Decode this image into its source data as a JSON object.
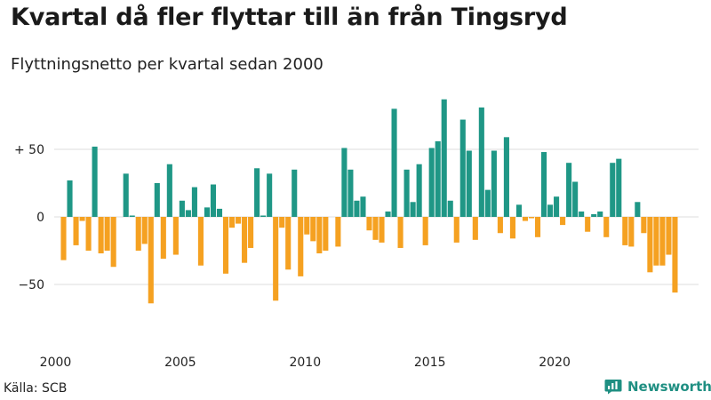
{
  "title": "Kvartal då fler flyttar till än från Tingsryd",
  "subtitle": "Flyttningsnetto per kvartal sedan 2000",
  "source": "Källa: SCB",
  "brand": {
    "name": "Newsworthy",
    "icon": "bar-chart-logo-icon"
  },
  "colors": {
    "positive": "#1f9786",
    "negative": "#f5a121",
    "grid": "#dddddd",
    "brand": "#1f8f82"
  },
  "chart_data": {
    "type": "bar",
    "title": "Kvartal då fler flyttar till än från Tingsryd",
    "subtitle": "Flyttningsnetto per kvartal sedan 2000",
    "xlabel": "",
    "ylabel": "",
    "x_start": "2000-Q1",
    "x_ticks": [
      {
        "label": "2000",
        "index": 0
      },
      {
        "label": "2005",
        "index": 20
      },
      {
        "label": "2010",
        "index": 40
      },
      {
        "label": "2015",
        "index": 60
      },
      {
        "label": "2020",
        "index": 80
      }
    ],
    "y_ticks": [
      {
        "label": "+ 50",
        "value": 50
      },
      {
        "label": "0",
        "value": 0
      },
      {
        "label": "−50",
        "value": -50
      }
    ],
    "ylim": [
      -80,
      90
    ],
    "grid": true,
    "values": [
      -32,
      27,
      -21,
      -3,
      -25,
      52,
      -27,
      -25,
      -37,
      0,
      32,
      1,
      -25,
      -20,
      -64,
      25,
      -31,
      39,
      -28,
      12,
      5,
      22,
      -36,
      7,
      24,
      6,
      -42,
      -8,
      -5,
      -34,
      -23,
      36,
      1,
      32,
      -62,
      -8,
      -39,
      35,
      -44,
      -13,
      -18,
      -27,
      -25,
      0,
      -22,
      51,
      35,
      12,
      15,
      -10,
      -17,
      -19,
      4,
      80,
      -23,
      35,
      11,
      39,
      -21,
      51,
      56,
      87,
      12,
      -19,
      72,
      49,
      -17,
      81,
      20,
      49,
      -12,
      59,
      -16,
      9,
      -3,
      -1,
      -15,
      48,
      9,
      15,
      -6,
      40,
      26,
      4,
      -11,
      2,
      4,
      -15,
      40,
      43,
      -21,
      -22,
      11,
      -12,
      -41,
      -36,
      -36,
      -28,
      -56
    ]
  }
}
